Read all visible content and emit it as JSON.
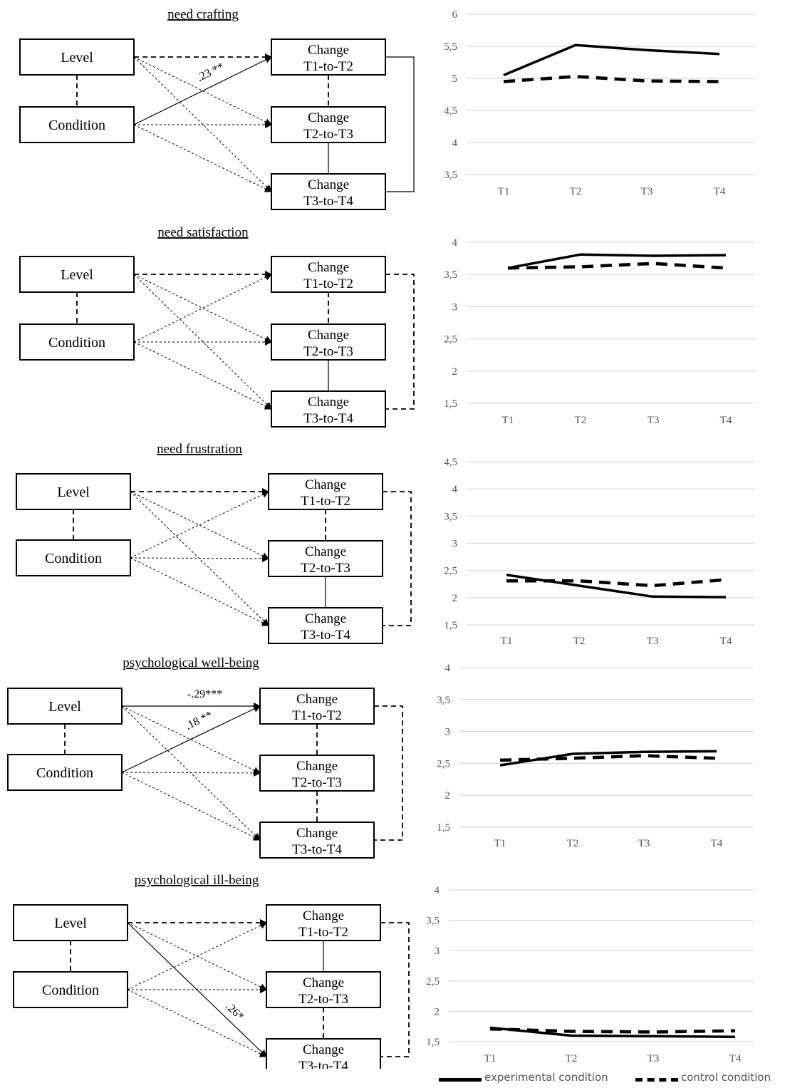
{
  "colors": {
    "ink": "#000000",
    "grid": "#d9d9d9",
    "axis_text": "#555555"
  },
  "diagram_labels": {
    "level": "Level",
    "condition": "Condition",
    "change_word": "Change",
    "t12": "T1-to-T2",
    "t23": "T2-to-T3",
    "t34": "T3-to-T4"
  },
  "panels": [
    {
      "title": "need crafting",
      "coefficients": [
        ".23 **"
      ]
    },
    {
      "title": "need satisfaction",
      "coefficients": []
    },
    {
      "title": "need frustration",
      "coefficients": []
    },
    {
      "title": "psychological well-being",
      "coefficients": [
        "-.29***",
        ".18 **"
      ]
    },
    {
      "title": "psychological ill-being",
      "coefficients": [
        ".26*"
      ]
    }
  ],
  "legend": {
    "experimental": "experimental condition",
    "control": "control condition"
  },
  "chart_data": [
    {
      "type": "line",
      "categories": [
        "T1",
        "T2",
        "T3",
        "T4"
      ],
      "yticks": [
        "3,5",
        "4",
        "4,5",
        "5",
        "5,5",
        "6"
      ],
      "ylim": [
        3.5,
        6
      ],
      "series": [
        {
          "name": "experimental condition",
          "values": [
            5.05,
            5.52,
            5.44,
            5.38
          ]
        },
        {
          "name": "control condition",
          "values": [
            4.95,
            5.03,
            4.96,
            4.95
          ]
        }
      ]
    },
    {
      "type": "line",
      "categories": [
        "T1",
        "T2",
        "T3",
        "T4"
      ],
      "yticks": [
        "1,5",
        "2",
        "2,5",
        "3",
        "3,5",
        "4"
      ],
      "ylim": [
        1.5,
        4
      ],
      "series": [
        {
          "name": "experimental condition",
          "values": [
            3.6,
            3.81,
            3.79,
            3.8
          ]
        },
        {
          "name": "control condition",
          "values": [
            3.6,
            3.62,
            3.67,
            3.6
          ]
        }
      ]
    },
    {
      "type": "line",
      "categories": [
        "T1",
        "T2",
        "T3",
        "T4"
      ],
      "yticks": [
        "1,5",
        "2",
        "2,5",
        "3",
        "3,5",
        "4",
        "4,5"
      ],
      "ylim": [
        1.5,
        4.5
      ],
      "series": [
        {
          "name": "experimental condition",
          "values": [
            2.42,
            2.22,
            2.02,
            2.01
          ]
        },
        {
          "name": "control condition",
          "values": [
            2.31,
            2.31,
            2.22,
            2.33
          ]
        }
      ]
    },
    {
      "type": "line",
      "categories": [
        "T1",
        "T2",
        "T3",
        "T4"
      ],
      "yticks": [
        "1,5",
        "2",
        "2,5",
        "3",
        "3,5",
        "4"
      ],
      "ylim": [
        1.5,
        4
      ],
      "series": [
        {
          "name": "experimental condition",
          "values": [
            2.47,
            2.65,
            2.68,
            2.69
          ]
        },
        {
          "name": "control condition",
          "values": [
            2.55,
            2.58,
            2.62,
            2.58
          ]
        }
      ]
    },
    {
      "type": "line",
      "categories": [
        "T1",
        "T2",
        "T3",
        "T4"
      ],
      "yticks": [
        "1,5",
        "2",
        "2,5",
        "3",
        "3,5",
        "4"
      ],
      "ylim": [
        1.5,
        4
      ],
      "series": [
        {
          "name": "experimental condition",
          "values": [
            1.73,
            1.6,
            1.59,
            1.58
          ]
        },
        {
          "name": "control condition",
          "values": [
            1.71,
            1.67,
            1.66,
            1.68
          ]
        }
      ]
    }
  ]
}
